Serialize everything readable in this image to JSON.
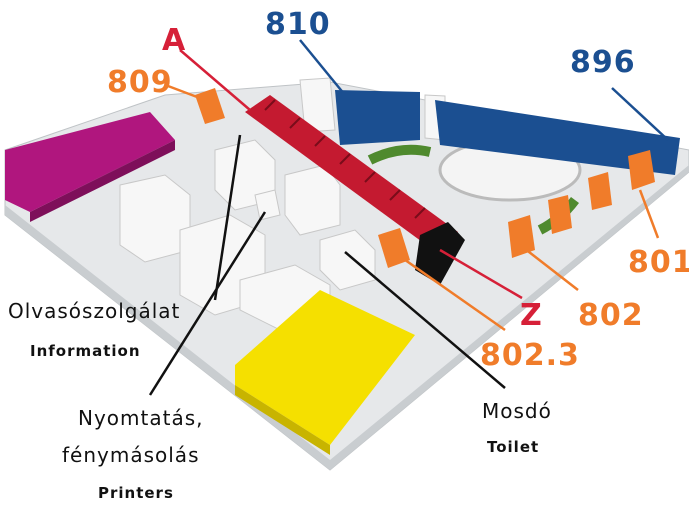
{
  "shelf_ends": [
    "A",
    "Z"
  ],
  "rooms": [
    "810",
    "896",
    "809",
    "801",
    "802",
    "802.3"
  ],
  "services": [
    {
      "lines": [
        "Olvasószolgálat"
      ],
      "english": "Information"
    },
    {
      "lines": [
        "Nyomtatás,",
        "fénymásolás"
      ],
      "english": "Printers"
    },
    {
      "lines": [
        "Mosdó"
      ],
      "english": "Toilet"
    }
  ]
}
